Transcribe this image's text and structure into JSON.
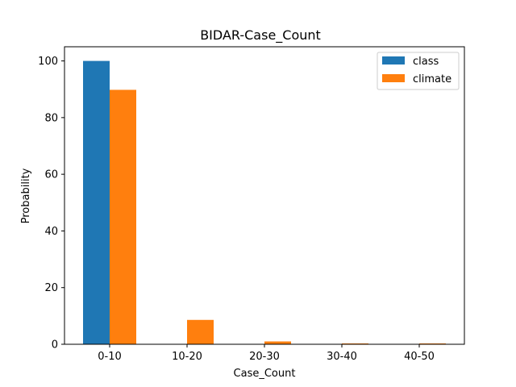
{
  "chart_data": {
    "type": "bar",
    "title": "BIDAR-Case_Count",
    "xlabel": "Case_Count",
    "ylabel": "Probability",
    "categories": [
      "0-10",
      "10-20",
      "20-30",
      "30-40",
      "40-50"
    ],
    "series": [
      {
        "name": "class",
        "color": "#1f77b4",
        "values": [
          100,
          0,
          0,
          0,
          0
        ]
      },
      {
        "name": "climate",
        "color": "#ff7f0e",
        "values": [
          89.8,
          8.6,
          1.0,
          0.3,
          0.3
        ]
      }
    ],
    "ylim": [
      0,
      105
    ],
    "yticks": [
      0,
      20,
      40,
      60,
      80,
      100
    ],
    "grid": false,
    "legend_position": "top-right"
  }
}
